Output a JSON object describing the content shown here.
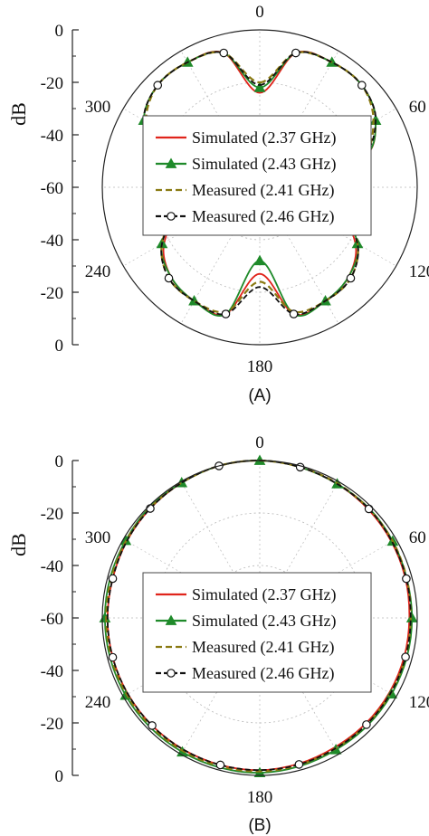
{
  "chart_data": [
    {
      "type": "polar-line",
      "panel_label": "(A)",
      "radial_axis": {
        "label": "dB",
        "ticks_upper": [
          "0",
          "-20",
          "-40",
          "-60"
        ],
        "ticks_lower": [
          "-40",
          "-20",
          "0"
        ],
        "range": [
          -60,
          0
        ]
      },
      "angle_labels": [
        "0",
        "60",
        "120",
        "180",
        "240",
        "300"
      ],
      "angles": [
        0,
        15,
        30,
        45,
        60,
        75,
        90,
        105,
        120,
        135,
        150,
        165,
        180,
        195,
        210,
        225,
        240,
        255,
        270,
        285,
        300,
        315,
        330,
        345
      ],
      "series": [
        {
          "name": "Simulated (2.37 GHz)",
          "values": [
            -24,
            -7,
            -5,
            -5,
            -9,
            -20,
            -52,
            -31,
            -18,
            -12,
            -10,
            -10,
            -27,
            -10,
            -10,
            -12,
            -18,
            -31,
            -52,
            -20,
            -9,
            -5,
            -5,
            -7
          ]
        },
        {
          "name": "Simulated (2.43 GHz)",
          "values": [
            -22,
            -7,
            -5,
            -5,
            -9,
            -20,
            -51,
            -30,
            -17,
            -12,
            -10,
            -10,
            -32,
            -10,
            -10,
            -12,
            -17,
            -30,
            -51,
            -20,
            -9,
            -5,
            -5,
            -7
          ]
        },
        {
          "name": "Measured (2.41 GHz)",
          "values": [
            -20,
            -7,
            -5,
            -5,
            -10,
            -21,
            -50,
            -29,
            -17,
            -11,
            -10,
            -11,
            -24,
            -11,
            -10,
            -11,
            -17,
            -29,
            -50,
            -21,
            -10,
            -5,
            -5,
            -7
          ]
        },
        {
          "name": "Measured (2.46 GHz)",
          "values": [
            -21,
            -7,
            -5,
            -5,
            -9,
            -21,
            -49,
            -30,
            -17,
            -11,
            -10,
            -10,
            -22,
            -10,
            -10,
            -11,
            -17,
            -30,
            -49,
            -21,
            -9,
            -5,
            -5,
            -7
          ]
        }
      ]
    },
    {
      "type": "polar-line",
      "panel_label": "(B)",
      "radial_axis": {
        "label": "dB",
        "ticks_upper": [
          "0",
          "-20",
          "-40",
          "-60"
        ],
        "ticks_lower": [
          "-40",
          "-20",
          "0"
        ],
        "range": [
          -60,
          0
        ]
      },
      "angle_labels": [
        "0",
        "60",
        "120",
        "180",
        "240",
        "300"
      ],
      "angles": [
        0,
        15,
        30,
        45,
        60,
        75,
        90,
        105,
        120,
        135,
        150,
        165,
        180,
        195,
        210,
        225,
        240,
        255,
        270,
        285,
        300,
        315,
        330,
        345
      ],
      "series": [
        {
          "name": "Simulated (2.37 GHz)",
          "values": [
            0,
            -0.5,
            -1,
            -1.5,
            -2,
            -2.5,
            -3,
            -3,
            -3,
            -3,
            -3,
            -2.5,
            -2,
            -2,
            -2,
            -2,
            -2,
            -2,
            -2,
            -2,
            -1.5,
            -1,
            -0.5,
            0
          ]
        },
        {
          "name": "Simulated (2.43 GHz)",
          "values": [
            0,
            -0.5,
            -1,
            -1,
            -1.5,
            -2,
            -2,
            -2,
            -2,
            -2,
            -2,
            -1.5,
            -1,
            -1,
            -1,
            -1,
            -1,
            -1,
            -1,
            -1,
            -1,
            -0.5,
            -0.5,
            0
          ]
        },
        {
          "name": "Measured (2.41 GHz)",
          "values": [
            0,
            -0.5,
            -0.8,
            -1.2,
            -1.5,
            -2,
            -2.5,
            -2.5,
            -2.5,
            -2.5,
            -2.5,
            -2,
            -1.5,
            -1.5,
            -1.5,
            -1.5,
            -1.5,
            -1.5,
            -1.5,
            -1.5,
            -1.2,
            -0.8,
            -0.5,
            0
          ]
        },
        {
          "name": "Measured (2.46 GHz)",
          "values": [
            0,
            -0.5,
            -1,
            -1.2,
            -1.8,
            -2.2,
            -2.5,
            -2.5,
            -2.5,
            -2.5,
            -2.5,
            -2.2,
            -2,
            -2,
            -2,
            -2,
            -2,
            -2,
            -2,
            -2,
            -1.5,
            -1,
            -0.5,
            0
          ]
        }
      ]
    }
  ],
  "style": {
    "series_colors": [
      "#e0241b",
      "#1f8a2a",
      "#8a7a12",
      "#111111"
    ],
    "grid_color": "#b8b8b8",
    "axis_color": "#222222"
  }
}
